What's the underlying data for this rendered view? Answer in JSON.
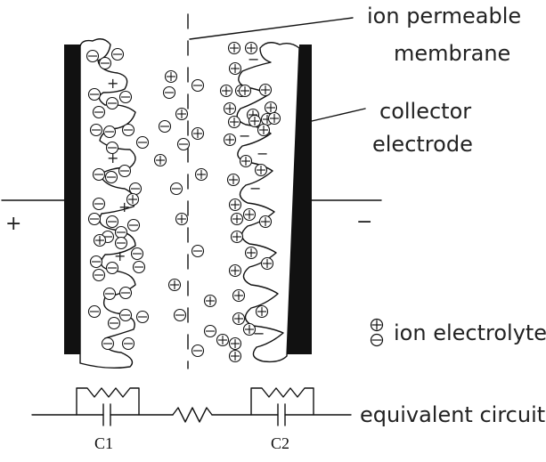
{
  "labels": {
    "membrane_line1": "ion permeable",
    "membrane_line2": "membrane",
    "collector_line1": "collector",
    "collector_line2": "electrode",
    "terminal_positive": "+",
    "terminal_negative": "−",
    "ion_legend": "ion electrolyte",
    "equivalent_circuit": "equivalent circuit",
    "cap1": "C1",
    "cap2": "C2",
    "surface_plus": "+",
    "surface_minus": "−"
  },
  "ions": {
    "cation_symbol": "+",
    "anion_symbol": "−"
  },
  "colors": {
    "ink": "#111111",
    "electrode": "#111111",
    "background": "#ffffff"
  }
}
